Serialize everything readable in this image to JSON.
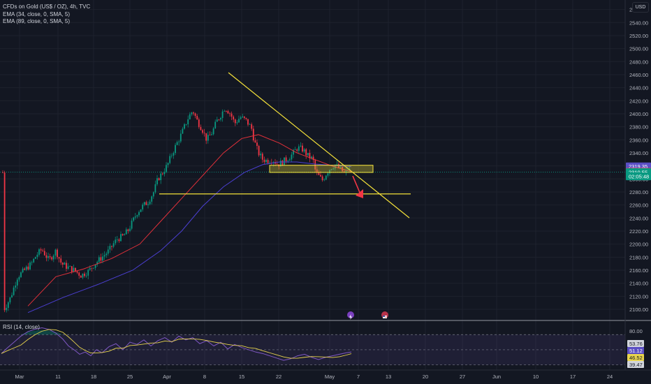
{
  "header": {
    "title": "CFDs on Gold (US$ / OZ), 4h, TVC",
    "ema34": "EMA (34, close, 0, SMA, 5)",
    "ema89": "EMA (89, close, 0, SMA, 5)",
    "currency": "USD"
  },
  "rsi_legend": "RSI (14, close)",
  "chart_data": {
    "type": "candlestick",
    "title": "CFDs on Gold (US$ / OZ), 4h, TVC",
    "y_ticks": [
      2100,
      2120,
      2140,
      2160,
      2180,
      2200,
      2220,
      2240,
      2260,
      2280,
      2300,
      2320,
      2340,
      2360,
      2380,
      2400,
      2420,
      2440,
      2460,
      2480,
      2500,
      2520,
      2540,
      2560
    ],
    "y_tick_labels": [
      "2100.00",
      "2120.00",
      "2140.00",
      "2160.00",
      "2180.00",
      "2200.00",
      "2220.00",
      "2240.00",
      "2260.00",
      "2280.00",
      "2300.00",
      "2320.00",
      "2340.00",
      "2360.00",
      "2380.00",
      "2400.00",
      "2420.00",
      "2440.00",
      "2460.00",
      "2480.00",
      "2500.00",
      "2520.00",
      "2540.00",
      "2560.00"
    ],
    "ylim": [
      2085,
      2566
    ],
    "x_labels": [
      "Mar",
      "11",
      "18",
      "25",
      "Apr",
      "8",
      "15",
      "22",
      "May",
      "7",
      "13",
      "20",
      "27",
      "Jun",
      "10",
      "17",
      "24"
    ],
    "price_labels": [
      {
        "text": "2319.35",
        "color": "#5b4fc4",
        "value": 2319.35
      },
      {
        "text": "2311.09",
        "color": "#f23645",
        "value": 2311.09
      },
      {
        "text": "2310.55",
        "color": "#089981",
        "value": 2310.55
      },
      {
        "text": "02:05:48",
        "color": "#089981",
        "value": 2304
      }
    ],
    "price_path": [
      [
        5,
        2098
      ],
      [
        15,
        2118
      ],
      [
        25,
        2150
      ],
      [
        35,
        2160
      ],
      [
        45,
        2170
      ],
      [
        52,
        2183
      ],
      [
        60,
        2192
      ],
      [
        70,
        2175
      ],
      [
        80,
        2190
      ],
      [
        88,
        2170
      ],
      [
        96,
        2165
      ],
      [
        106,
        2160
      ],
      [
        116,
        2152
      ],
      [
        126,
        2158
      ],
      [
        136,
        2170
      ],
      [
        146,
        2180
      ],
      [
        156,
        2190
      ],
      [
        162,
        2200
      ],
      [
        168,
        2208
      ],
      [
        176,
        2212
      ],
      [
        184,
        2222
      ],
      [
        190,
        2235
      ],
      [
        196,
        2248
      ],
      [
        204,
        2258
      ],
      [
        212,
        2265
      ],
      [
        220,
        2280
      ],
      [
        226,
        2300
      ],
      [
        233,
        2310
      ],
      [
        240,
        2322
      ],
      [
        246,
        2338
      ],
      [
        252,
        2352
      ],
      [
        258,
        2365
      ],
      [
        264,
        2380
      ],
      [
        270,
        2395
      ],
      [
        276,
        2405
      ],
      [
        282,
        2390
      ],
      [
        290,
        2375
      ],
      [
        296,
        2360
      ],
      [
        304,
        2372
      ],
      [
        310,
        2388
      ],
      [
        316,
        2398
      ],
      [
        322,
        2410
      ],
      [
        330,
        2400
      ],
      [
        336,
        2385
      ],
      [
        344,
        2395
      ],
      [
        352,
        2390
      ],
      [
        360,
        2378
      ],
      [
        364,
        2358
      ],
      [
        370,
        2340
      ],
      [
        376,
        2330
      ],
      [
        382,
        2328
      ],
      [
        390,
        2330
      ],
      [
        398,
        2322
      ],
      [
        404,
        2326
      ],
      [
        410,
        2330
      ],
      [
        416,
        2335
      ],
      [
        420,
        2340
      ],
      [
        426,
        2348
      ],
      [
        434,
        2345
      ],
      [
        440,
        2336
      ],
      [
        448,
        2330
      ],
      [
        452,
        2310
      ],
      [
        458,
        2302
      ],
      [
        462,
        2298
      ],
      [
        468,
        2310
      ],
      [
        474,
        2318
      ],
      [
        480,
        2322
      ],
      [
        486,
        2316
      ],
      [
        490,
        2312
      ],
      [
        494,
        2308
      ],
      [
        498,
        2316
      ],
      [
        503,
        2310
      ]
    ],
    "ema34_path": [
      [
        40,
        2105
      ],
      [
        80,
        2150
      ],
      [
        120,
        2162
      ],
      [
        160,
        2178
      ],
      [
        200,
        2200
      ],
      [
        230,
        2235
      ],
      [
        260,
        2270
      ],
      [
        290,
        2305
      ],
      [
        320,
        2340
      ],
      [
        346,
        2362
      ],
      [
        370,
        2368
      ],
      [
        400,
        2355
      ],
      [
        425,
        2340
      ],
      [
        450,
        2330
      ],
      [
        475,
        2320
      ],
      [
        503,
        2311
      ]
    ],
    "ema89_path": [
      [
        40,
        2095
      ],
      [
        90,
        2118
      ],
      [
        140,
        2138
      ],
      [
        190,
        2160
      ],
      [
        230,
        2190
      ],
      [
        260,
        2220
      ],
      [
        290,
        2258
      ],
      [
        320,
        2288
      ],
      [
        350,
        2310
      ],
      [
        376,
        2322
      ],
      [
        400,
        2326
      ],
      [
        425,
        2326
      ],
      [
        450,
        2323
      ],
      [
        475,
        2321
      ],
      [
        503,
        2319
      ]
    ],
    "rsi": {
      "labels": [
        "80.00",
        "53.76",
        "51.12",
        "46.52",
        "39.47"
      ],
      "values": [
        80,
        53.76,
        51.12,
        46.52,
        39.47
      ],
      "levels": [
        70,
        50,
        30
      ],
      "path": [
        [
          2,
          45
        ],
        [
          10,
          52
        ],
        [
          20,
          60
        ],
        [
          30,
          68
        ],
        [
          40,
          74
        ],
        [
          50,
          77
        ],
        [
          60,
          79
        ],
        [
          70,
          77
        ],
        [
          80,
          72
        ],
        [
          90,
          64
        ],
        [
          98,
          55
        ],
        [
          106,
          50
        ],
        [
          114,
          44
        ],
        [
          122,
          47
        ],
        [
          130,
          42
        ],
        [
          138,
          50
        ],
        [
          146,
          46
        ],
        [
          156,
          54
        ],
        [
          166,
          58
        ],
        [
          176,
          50
        ],
        [
          186,
          60
        ],
        [
          196,
          57
        ],
        [
          206,
          63
        ],
        [
          216,
          55
        ],
        [
          226,
          62
        ],
        [
          236,
          66
        ],
        [
          246,
          60
        ],
        [
          256,
          68
        ],
        [
          266,
          63
        ],
        [
          276,
          66
        ],
        [
          286,
          58
        ],
        [
          296,
          62
        ],
        [
          306,
          55
        ],
        [
          316,
          60
        ],
        [
          326,
          51
        ],
        [
          336,
          57
        ],
        [
          346,
          53
        ],
        [
          356,
          50
        ],
        [
          366,
          47
        ],
        [
          376,
          45
        ],
        [
          386,
          42
        ],
        [
          396,
          39
        ],
        [
          406,
          36
        ],
        [
          416,
          38
        ],
        [
          426,
          42
        ],
        [
          436,
          44
        ],
        [
          446,
          40
        ],
        [
          456,
          37
        ],
        [
          466,
          40
        ],
        [
          476,
          42
        ],
        [
          486,
          44
        ],
        [
          496,
          46
        ],
        [
          503,
          47
        ]
      ]
    },
    "annotations": {
      "descending_trendline": [
        [
          2421,
          "start"
        ],
        [
          2240,
          "end"
        ]
      ],
      "support_level": 2277,
      "supply_zone": [
        2310,
        2321
      ],
      "arrow": "down"
    }
  }
}
